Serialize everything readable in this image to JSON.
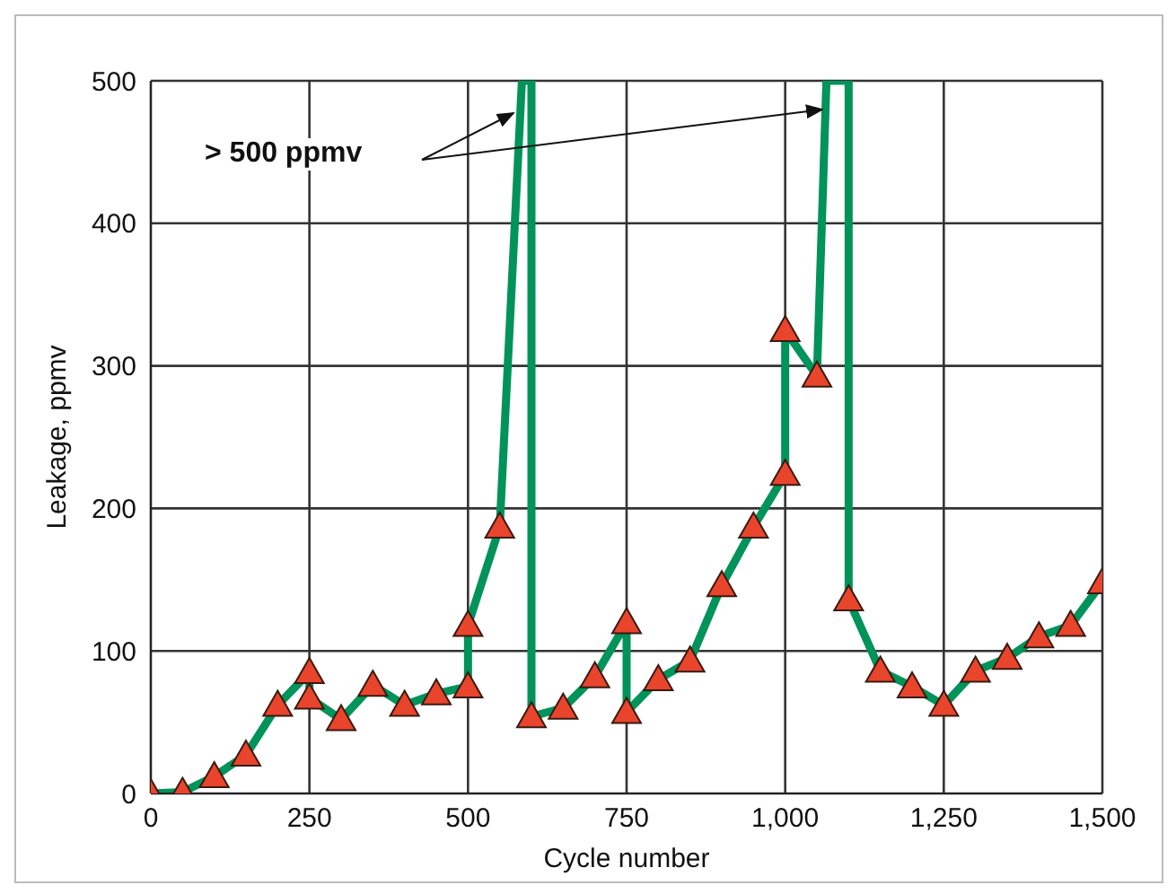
{
  "chart_data": {
    "type": "line",
    "xlabel": "Cycle number",
    "ylabel": "Leakage, ppmv",
    "xlim": [
      0,
      1500
    ],
    "ylim": [
      0,
      500
    ],
    "xticks": [
      0,
      250,
      500,
      750,
      {
        "value": 1000,
        "label": "1,000"
      },
      {
        "value": 1250,
        "label": "1,250"
      },
      {
        "value": 1500,
        "label": "1,500"
      }
    ],
    "yticks": [
      0,
      100,
      200,
      300,
      400,
      500
    ],
    "grid": true,
    "annotations": [
      "> 500 ppmv"
    ],
    "series": [
      {
        "type": "line",
        "color": "#00935a",
        "marker": "none",
        "line_style": "solid",
        "x": [
          0,
          50,
          100,
          150,
          200,
          250,
          250,
          300,
          350,
          400,
          450,
          500,
          500,
          550,
          585,
          600,
          600,
          650,
          700,
          750,
          750,
          800,
          850,
          900,
          950,
          1000,
          1000,
          1050,
          1065,
          1100,
          1100,
          1150,
          1200,
          1250,
          1300,
          1350,
          1400,
          1450,
          1500
        ],
        "values": [
          0,
          1,
          12,
          27,
          62,
          85,
          67,
          52,
          76,
          62,
          70,
          75,
          118,
          187,
          500,
          500,
          54,
          60,
          82,
          120,
          57,
          80,
          93,
          146,
          187,
          224,
          325,
          293,
          500,
          500,
          136,
          86,
          75,
          62,
          86,
          95,
          110,
          118,
          148
        ]
      },
      {
        "type": "scatter",
        "color": "#e8452c",
        "marker": "triangle",
        "x": [
          0,
          50,
          100,
          150,
          200,
          250,
          250,
          300,
          350,
          400,
          450,
          500,
          500,
          550,
          600,
          650,
          700,
          750,
          750,
          800,
          850,
          900,
          950,
          1000,
          1000,
          1050,
          1100,
          1150,
          1200,
          1250,
          1300,
          1350,
          1400,
          1450,
          1500
        ],
        "values": [
          0,
          1,
          12,
          27,
          62,
          85,
          67,
          52,
          76,
          62,
          70,
          75,
          118,
          187,
          54,
          60,
          82,
          120,
          57,
          80,
          93,
          146,
          187,
          224,
          325,
          293,
          136,
          86,
          75,
          62,
          86,
          95,
          110,
          118,
          148
        ]
      }
    ]
  }
}
